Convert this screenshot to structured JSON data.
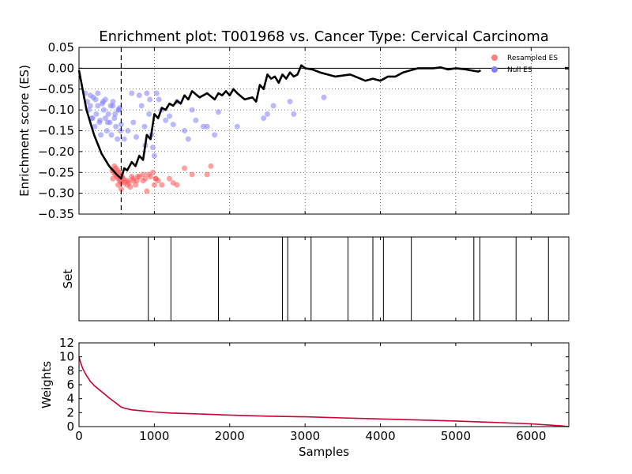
{
  "chart_data": [
    {
      "type": "line",
      "title": "Enrichment plot: T001968 vs. Cancer Type: Cervical Carcinoma",
      "ylabel": "Enrichment score (ES)",
      "xlim": [
        0,
        6500
      ],
      "ylim": [
        -0.35,
        0.05
      ],
      "yticks": [
        "0.05",
        "0.00",
        "−0.05",
        "−0.10",
        "−0.15",
        "−0.20",
        "−0.25",
        "−0.30",
        "−0.35"
      ],
      "yvalues": [
        0.05,
        0.0,
        -0.05,
        -0.1,
        -0.15,
        -0.2,
        -0.25,
        -0.3,
        -0.35
      ],
      "xgrid": [
        1000,
        2000,
        3000,
        4000,
        5000,
        6000
      ],
      "grid": true,
      "legend_position": "top-right",
      "legend": [
        {
          "label": "Resampled ES",
          "color": "#ff8080"
        },
        {
          "label": "Null ES",
          "color": "#8080ff"
        }
      ],
      "vline_x": 560,
      "series": [
        {
          "key": "running_es",
          "color": "#000000",
          "x": [
            0,
            100,
            200,
            300,
            400,
            500,
            560,
            600,
            640,
            700,
            750,
            800,
            850,
            900,
            950,
            1000,
            1050,
            1100,
            1150,
            1200,
            1250,
            1300,
            1350,
            1400,
            1450,
            1500,
            1600,
            1700,
            1800,
            1850,
            1900,
            1950,
            2000,
            2050,
            2100,
            2200,
            2300,
            2350,
            2400,
            2450,
            2500,
            2550,
            2600,
            2650,
            2700,
            2750,
            2800,
            2850,
            2900,
            2950,
            3000,
            3100,
            3200,
            3400,
            3600,
            3800,
            3900,
            4000,
            4100,
            4200,
            4300,
            4400,
            4500,
            4700,
            4800,
            4900,
            5000,
            5100,
            5200,
            5300,
            5330
          ],
          "y": [
            -0.005,
            -0.1,
            -0.16,
            -0.205,
            -0.235,
            -0.255,
            -0.265,
            -0.24,
            -0.245,
            -0.225,
            -0.235,
            -0.21,
            -0.22,
            -0.16,
            -0.17,
            -0.11,
            -0.12,
            -0.095,
            -0.1,
            -0.085,
            -0.09,
            -0.078,
            -0.085,
            -0.065,
            -0.075,
            -0.055,
            -0.07,
            -0.06,
            -0.075,
            -0.06,
            -0.065,
            -0.055,
            -0.065,
            -0.05,
            -0.06,
            -0.075,
            -0.07,
            -0.08,
            -0.04,
            -0.05,
            -0.015,
            -0.025,
            -0.02,
            -0.035,
            -0.015,
            -0.025,
            -0.01,
            -0.02,
            -0.015,
            0.007,
            0.0,
            -0.003,
            -0.01,
            -0.02,
            -0.015,
            -0.03,
            -0.025,
            -0.03,
            -0.02,
            -0.02,
            -0.01,
            -0.005,
            0.0,
            0.0,
            0.002,
            -0.003,
            0.0,
            -0.002,
            -0.005,
            -0.008,
            -0.005
          ]
        },
        {
          "key": "null_es",
          "color": "#8080ff",
          "x": [
            80,
            110,
            130,
            150,
            170,
            190,
            210,
            230,
            250,
            270,
            290,
            310,
            330,
            350,
            370,
            390,
            410,
            430,
            450,
            470,
            490,
            510,
            530,
            550,
            150,
            250,
            350,
            450,
            540,
            560,
            600,
            650,
            700,
            720,
            760,
            800,
            830,
            870,
            900,
            930,
            960,
            980,
            1000,
            1030,
            1060,
            1100,
            1150,
            1200,
            1250,
            1300,
            1400,
            1450,
            1500,
            1550,
            1650,
            1700,
            1800,
            1850,
            2100,
            2450,
            2500,
            2580,
            2800,
            2850,
            3250,
            220,
            320,
            420,
            520,
            480,
            180,
            280,
            380,
            880,
            940
          ],
          "y": [
            -0.06,
            -0.08,
            -0.1,
            -0.09,
            -0.12,
            -0.07,
            -0.14,
            -0.11,
            -0.09,
            -0.13,
            -0.16,
            -0.085,
            -0.1,
            -0.12,
            -0.15,
            -0.11,
            -0.13,
            -0.16,
            -0.09,
            -0.12,
            -0.14,
            -0.17,
            -0.1,
            -0.15,
            -0.065,
            -0.06,
            -0.075,
            -0.08,
            -0.095,
            -0.135,
            -0.17,
            -0.15,
            -0.06,
            -0.13,
            -0.165,
            -0.065,
            -0.09,
            -0.14,
            -0.06,
            -0.11,
            -0.16,
            -0.19,
            -0.21,
            -0.06,
            -0.075,
            -0.1,
            -0.125,
            -0.115,
            -0.135,
            -0.08,
            -0.15,
            -0.17,
            -0.1,
            -0.125,
            -0.14,
            -0.14,
            -0.16,
            -0.105,
            -0.14,
            -0.12,
            -0.11,
            -0.09,
            -0.08,
            -0.11,
            -0.07,
            -0.075,
            -0.08,
            -0.09,
            -0.1,
            -0.11,
            -0.12,
            -0.125,
            -0.13,
            -0.185,
            -0.075
          ],
          "opacity": 0.55
        },
        {
          "key": "resampled_es",
          "color": "#ff5050",
          "x": [
            440,
            460,
            480,
            500,
            520,
            540,
            560,
            470,
            490,
            510,
            530,
            550,
            570,
            590,
            610,
            640,
            660,
            680,
            700,
            720,
            750,
            770,
            800,
            850,
            880,
            900,
            950,
            980,
            1000,
            1020,
            1050,
            1100,
            1200,
            1250,
            1300,
            1400,
            1500,
            1700,
            1750,
            450,
            520,
            560,
            600,
            650,
            720,
            780,
            850,
            920,
            1020
          ],
          "y": [
            -0.245,
            -0.25,
            -0.255,
            -0.26,
            -0.265,
            -0.27,
            -0.275,
            -0.235,
            -0.24,
            -0.245,
            -0.25,
            -0.255,
            -0.26,
            -0.265,
            -0.27,
            -0.28,
            -0.275,
            -0.285,
            -0.26,
            -0.27,
            -0.28,
            -0.27,
            -0.26,
            -0.255,
            -0.265,
            -0.295,
            -0.26,
            -0.25,
            -0.28,
            -0.265,
            -0.27,
            -0.28,
            -0.265,
            -0.275,
            -0.28,
            -0.24,
            -0.255,
            -0.255,
            -0.235,
            -0.265,
            -0.28,
            -0.29,
            -0.275,
            -0.27,
            -0.265,
            -0.26,
            -0.27,
            -0.255,
            -0.265
          ],
          "opacity": 0.55
        }
      ]
    },
    {
      "type": "bar",
      "ylabel": "Set",
      "xlim": [
        0,
        6500
      ],
      "hits": [
        920,
        1220,
        1850,
        2700,
        2770,
        3080,
        3570,
        3900,
        4040,
        4410,
        5240,
        5320,
        5800,
        6230
      ]
    },
    {
      "type": "area",
      "xlabel": "Samples",
      "ylabel": "Weights",
      "xlim": [
        0,
        6500
      ],
      "ylim": [
        0,
        12
      ],
      "xticks": [
        "0",
        "1000",
        "2000",
        "3000",
        "4000",
        "5000",
        "6000"
      ],
      "xvalues": [
        0,
        1000,
        2000,
        3000,
        4000,
        5000,
        6000
      ],
      "yticks": [
        "0",
        "2",
        "4",
        "6",
        "8",
        "10",
        "12"
      ],
      "yvalues": [
        0,
        2,
        4,
        6,
        8,
        10,
        12
      ],
      "color": "#cc0033",
      "x": [
        0,
        20,
        50,
        100,
        150,
        200,
        300,
        400,
        500,
        560,
        600,
        700,
        800,
        1000,
        1200,
        1500,
        2000,
        2500,
        3000,
        3500,
        4000,
        4500,
        5000,
        5500,
        6000,
        6200,
        6400,
        6500
      ],
      "y": [
        10.0,
        9.2,
        8.3,
        7.3,
        6.5,
        5.9,
        5.0,
        4.1,
        3.3,
        2.8,
        2.65,
        2.4,
        2.3,
        2.1,
        1.95,
        1.85,
        1.65,
        1.5,
        1.4,
        1.25,
        1.1,
        0.95,
        0.8,
        0.6,
        0.4,
        0.25,
        0.1,
        0.0
      ]
    }
  ]
}
